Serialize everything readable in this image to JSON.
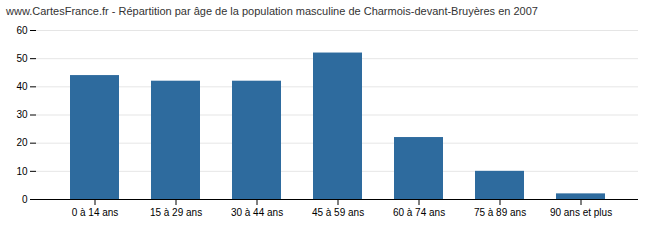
{
  "chart_data": {
    "type": "bar",
    "title": "www.CartesFrance.fr - Répartition par âge de la population masculine de Charmois-devant-Bruyères en 2007",
    "categories": [
      "0 à 14 ans",
      "15 à 29 ans",
      "30 à 44 ans",
      "45 à 59 ans",
      "60 à 74 ans",
      "75 à 89 ans",
      "90 ans et plus"
    ],
    "values": [
      44,
      42,
      42,
      52,
      22,
      10,
      2
    ],
    "color": "#2e6b9e",
    "ylim": [
      0,
      60
    ],
    "yticks": [
      0,
      10,
      20,
      30,
      40,
      50,
      60
    ],
    "grid": true
  }
}
